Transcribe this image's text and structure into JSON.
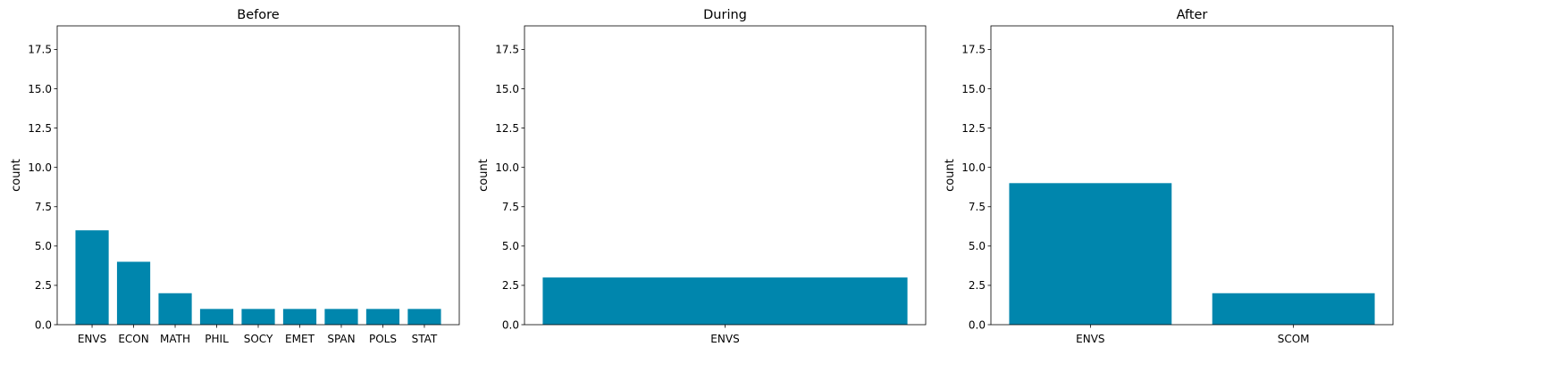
{
  "chart_data": [
    {
      "type": "bar",
      "title": "Before",
      "xlabel": "",
      "ylabel": "count",
      "ylim": [
        0,
        19
      ],
      "yticks": [
        "0.0",
        "2.5",
        "5.0",
        "7.5",
        "10.0",
        "12.5",
        "15.0",
        "17.5"
      ],
      "categories": [
        "ENVS",
        "ECON",
        "MATH",
        "PHIL",
        "SOCY",
        "EMET",
        "SPAN",
        "POLS",
        "STAT"
      ],
      "values": [
        6,
        4,
        2,
        1,
        1,
        1,
        1,
        1,
        1
      ],
      "grid": false,
      "bar_color": "#0086ad"
    },
    {
      "type": "bar",
      "title": "During",
      "xlabel": "",
      "ylabel": "count",
      "ylim": [
        0,
        19
      ],
      "yticks": [
        "0.0",
        "2.5",
        "5.0",
        "7.5",
        "10.0",
        "12.5",
        "15.0",
        "17.5"
      ],
      "categories": [
        "ENVS"
      ],
      "values": [
        3
      ],
      "grid": false,
      "bar_color": "#0086ad"
    },
    {
      "type": "bar",
      "title": "After",
      "xlabel": "",
      "ylabel": "count",
      "ylim": [
        0,
        19
      ],
      "yticks": [
        "0.0",
        "2.5",
        "5.0",
        "7.5",
        "10.0",
        "12.5",
        "15.0",
        "17.5"
      ],
      "categories": [
        "ENVS",
        "SCOM"
      ],
      "values": [
        9,
        2
      ],
      "grid": false,
      "bar_color": "#0086ad"
    }
  ]
}
